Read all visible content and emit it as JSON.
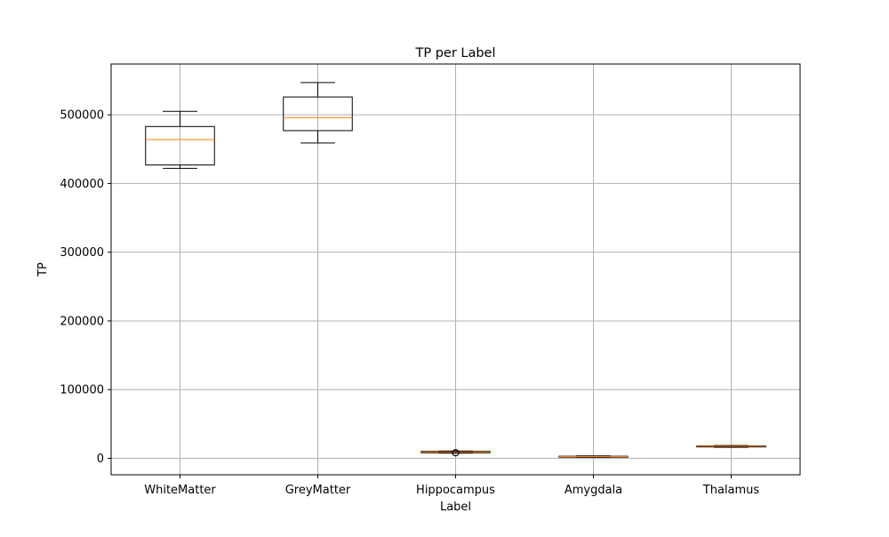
{
  "chart_data": {
    "type": "box",
    "title": "TP per Label",
    "xlabel": "Label",
    "ylabel": "TP",
    "categories": [
      "WhiteMatter",
      "GreyMatter",
      "Hippocampus",
      "Amygdala",
      "Thalamus"
    ],
    "boxes": [
      {
        "label": "WhiteMatter",
        "whisker_low": 422000,
        "q1": 427000,
        "median": 464000,
        "q3": 483000,
        "whisker_high": 505000,
        "outliers": []
      },
      {
        "label": "GreyMatter",
        "whisker_low": 459000,
        "q1": 477000,
        "median": 496000,
        "q3": 526000,
        "whisker_high": 547000,
        "outliers": []
      },
      {
        "label": "Hippocampus",
        "whisker_low": 7500,
        "q1": 8000,
        "median": 9000,
        "q3": 10000,
        "whisker_high": 10500,
        "outliers": [
          8000
        ]
      },
      {
        "label": "Amygdala",
        "whisker_low": 1500,
        "q1": 2000,
        "median": 2500,
        "q3": 3000,
        "whisker_high": 3500,
        "outliers": []
      },
      {
        "label": "Thalamus",
        "whisker_low": 16000,
        "q1": 16500,
        "median": 17500,
        "q3": 18000,
        "whisker_high": 18500,
        "outliers": []
      }
    ],
    "yticks": [
      0,
      100000,
      200000,
      300000,
      400000,
      500000
    ],
    "ytick_labels": [
      "0",
      "100000",
      "200000",
      "300000",
      "400000",
      "500000"
    ],
    "ylim": [
      -24000,
      574000
    ],
    "grid": true,
    "colors": {
      "box": "#000000",
      "median": "#ff7f0e",
      "grid": "#b0b0b0"
    }
  }
}
